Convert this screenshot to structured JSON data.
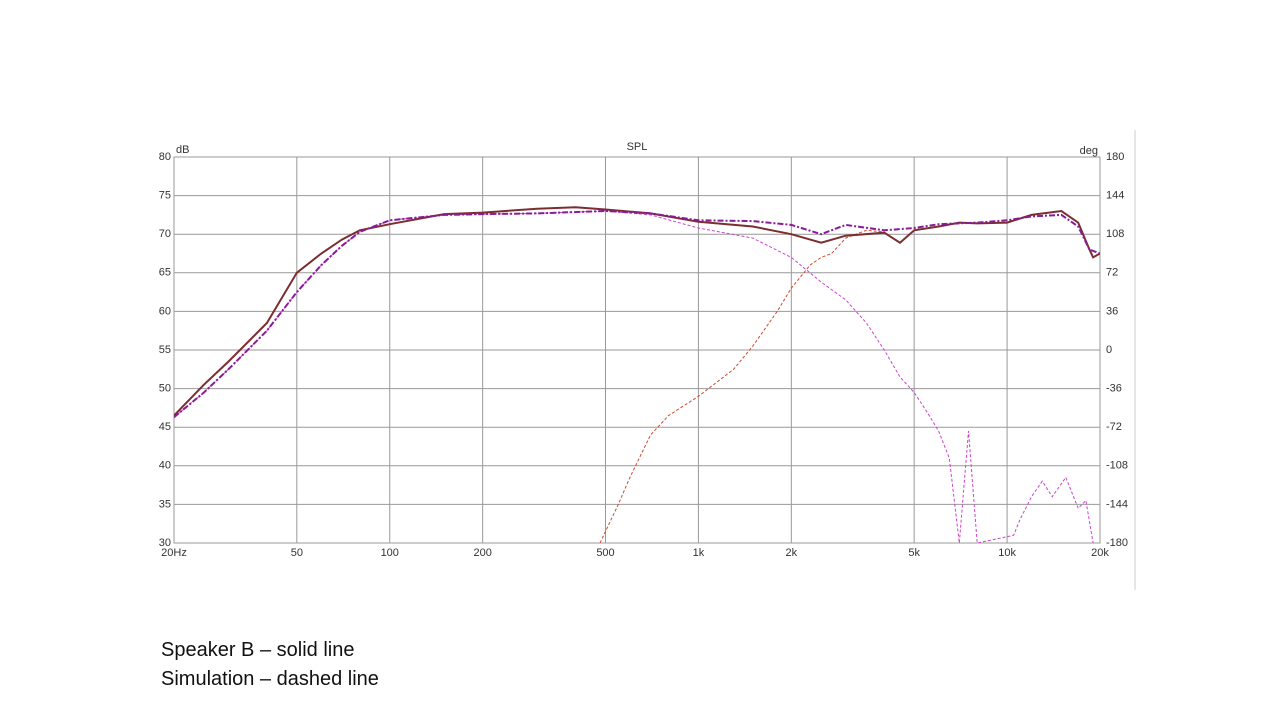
{
  "chart_data": {
    "type": "line",
    "title": "SPL",
    "y_label": "dB",
    "y2_label": "deg",
    "log_x": true,
    "grid": true,
    "xlim": [
      20,
      20000
    ],
    "xticks": [
      {
        "value": 20,
        "label": "20Hz"
      },
      50,
      100,
      200,
      500,
      {
        "value": 1000,
        "label": "1k"
      },
      {
        "value": 2000,
        "label": "2k"
      },
      {
        "value": 5000,
        "label": "5k"
      },
      {
        "value": 10000,
        "label": "10k"
      },
      {
        "value": 20000,
        "label": "20k"
      }
    ],
    "ylim": [
      30,
      80
    ],
    "yticks": [
      30,
      35,
      40,
      45,
      50,
      55,
      60,
      65,
      70,
      75,
      80
    ],
    "y2lim": [
      -180,
      180
    ],
    "y2ticks": [
      -180,
      -144,
      -108,
      -72,
      -36,
      0,
      36,
      72,
      108,
      144,
      180
    ],
    "series": [
      {
        "color": "#d04a2a",
        "dash": "3,2",
        "width": 1,
        "x": [
          480,
          550,
          600,
          700,
          800,
          1000,
          1300,
          1500,
          1800,
          2000,
          2300,
          2500,
          2700,
          3000,
          3500,
          4000
        ],
        "values": [
          30,
          35,
          38.5,
          44,
          46.5,
          49,
          52.5,
          55.5,
          60,
          63,
          66,
          67,
          67.5,
          69.5,
          70.5,
          70.3
        ]
      },
      {
        "color": "#cc44cc",
        "dash": "3,2",
        "width": 1,
        "x": [
          20,
          25,
          30,
          40,
          50,
          60,
          70,
          80,
          100,
          150,
          200,
          300,
          500,
          700,
          1000,
          1500,
          2000,
          2500,
          3000,
          3500,
          4000,
          4500,
          5000,
          5500,
          6000,
          6500,
          7000,
          7500,
          8000,
          10500,
          11000,
          12000,
          13000,
          14000,
          15500,
          17000,
          18000,
          19000
        ],
        "values": [
          46.3,
          49.5,
          52.5,
          57.5,
          62.5,
          66,
          68.5,
          70.3,
          71.8,
          72.5,
          72.6,
          72.7,
          73,
          72.5,
          70.8,
          69.5,
          67,
          63.8,
          61.5,
          58.5,
          55,
          51.5,
          49.5,
          47,
          44.5,
          41,
          30,
          44.5,
          30,
          31,
          33,
          36,
          38,
          36,
          38.5,
          34.5,
          35.5,
          30
        ]
      },
      {
        "color": "#7a2e30",
        "dash": "",
        "width": 2,
        "x": [
          20,
          25,
          30,
          40,
          50,
          60,
          70,
          80,
          100,
          150,
          200,
          300,
          400,
          500,
          700,
          1000,
          1500,
          2000,
          2500,
          3000,
          4000,
          4500,
          5000,
          6000,
          7000,
          8000,
          10000,
          12000,
          15000,
          17000,
          18500,
          19000,
          20000
        ],
        "values": [
          46.5,
          50.5,
          53.5,
          58.5,
          65,
          67.5,
          69.3,
          70.5,
          71.3,
          72.6,
          72.8,
          73.3,
          73.5,
          73.2,
          72.7,
          71.6,
          71,
          70,
          68.9,
          69.8,
          70.2,
          68.9,
          70.5,
          71,
          71.5,
          71.4,
          71.5,
          72.5,
          73,
          71.5,
          68,
          67,
          67.5
        ]
      },
      {
        "color": "#8a1a9a",
        "dash": "6,2,2,2",
        "width": 2,
        "x": [
          20,
          25,
          30,
          40,
          50,
          60,
          70,
          80,
          100,
          150,
          200,
          300,
          500,
          700,
          1000,
          1500,
          2000,
          2500,
          3000,
          4000,
          5000,
          6000,
          8000,
          10000,
          12000,
          15000,
          17000,
          18500,
          20000
        ],
        "values": [
          46.3,
          49.5,
          52.5,
          57.5,
          62.5,
          66,
          68.5,
          70.3,
          71.8,
          72.5,
          72.6,
          72.7,
          73,
          72.7,
          71.8,
          71.7,
          71.2,
          70,
          71.2,
          70.5,
          70.8,
          71.3,
          71.5,
          71.8,
          72.3,
          72.5,
          71,
          68,
          67.5
        ]
      }
    ],
    "notes": [
      "Speaker B – solid line",
      "Simulation – dashed line"
    ]
  }
}
